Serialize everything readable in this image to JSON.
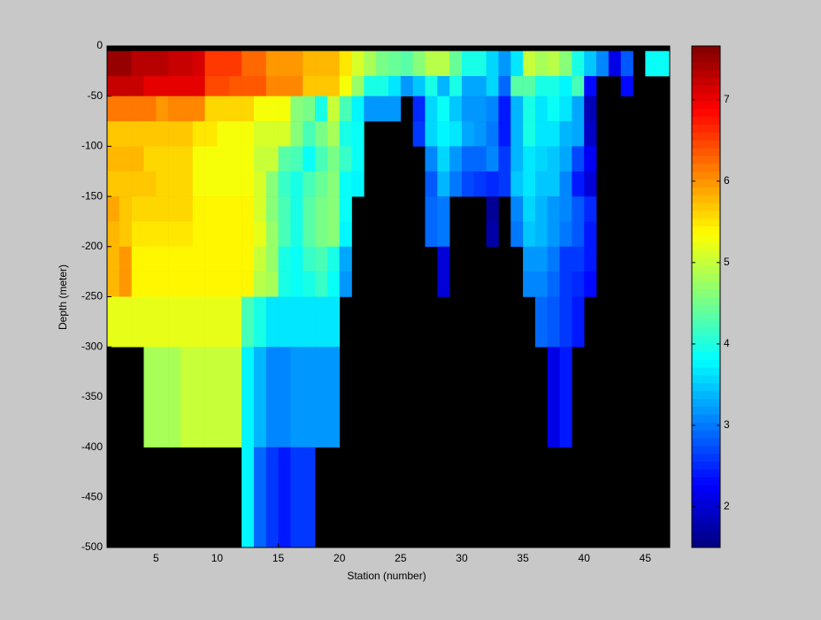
{
  "chart_data": {
    "type": "heatmap",
    "xlabel": "Station (number)",
    "ylabel": "Depth (meter)",
    "colormap": "jet",
    "x": [
      1,
      2,
      3,
      4,
      5,
      6,
      7,
      8,
      9,
      10,
      11,
      12,
      13,
      14,
      15,
      16,
      17,
      18,
      19,
      20,
      21,
      22,
      23,
      24,
      25,
      26,
      27,
      28,
      29,
      30,
      31,
      32,
      33,
      34,
      35,
      36,
      37,
      38,
      39,
      40,
      41,
      42,
      43,
      44,
      45,
      46,
      47
    ],
    "y": [
      -5,
      -30,
      -50,
      -75,
      -100,
      -125,
      -150,
      -175,
      -200,
      -225,
      -250,
      -300,
      -400,
      -500
    ],
    "z": [
      [
        7.5,
        7.5,
        7.3,
        7.3,
        7.3,
        7.2,
        7.2,
        7.1,
        6.6,
        6.6,
        6.6,
        6.3,
        6.3,
        6.0,
        6.0,
        6.0,
        5.8,
        5.8,
        5.8,
        5.5,
        5.1,
        4.8,
        4.5,
        4.4,
        4.3,
        4.6,
        4.9,
        4.9,
        4.4,
        4.0,
        4.0,
        3.6,
        3.2,
        3.7,
        5.0,
        4.8,
        4.9,
        4.6,
        4.0,
        3.5,
        3.1,
        2.1,
        2.8,
        null,
        3.9,
        3.9
      ],
      [
        7.2,
        7.2,
        7.2,
        7.0,
        7.0,
        7.0,
        7.0,
        7.0,
        6.5,
        6.5,
        6.4,
        6.4,
        6.4,
        6.1,
        6.1,
        6.1,
        5.7,
        5.7,
        5.7,
        5.3,
        4.7,
        4.0,
        4.0,
        3.7,
        3.2,
        3.5,
        4.0,
        3.4,
        4.0,
        3.3,
        3.3,
        3.6,
        2.9,
        4.3,
        4.3,
        4.0,
        4.0,
        3.8,
        4.2,
        2.3,
        null,
        null,
        2.3,
        null,
        null,
        null
      ],
      [
        6.2,
        6.2,
        6.2,
        6.2,
        6.0,
        6.1,
        6.1,
        6.1,
        5.6,
        5.6,
        5.6,
        5.6,
        5.3,
        5.3,
        5.3,
        4.6,
        4.5,
        4.0,
        5.0,
        4.2,
        3.8,
        3.2,
        3.2,
        3.2,
        null,
        2.5,
        3.6,
        3.9,
        3.5,
        3.2,
        3.2,
        3.1,
        2.4,
        3.4,
        4.0,
        3.7,
        3.9,
        3.7,
        3.3,
        1.8,
        null,
        null,
        null,
        null,
        null,
        null
      ],
      [
        5.7,
        5.7,
        5.7,
        5.7,
        5.7,
        5.7,
        5.7,
        5.5,
        5.5,
        5.3,
        5.3,
        5.3,
        5.1,
        5.1,
        5.1,
        4.6,
        4.2,
        4.5,
        4.8,
        4.0,
        3.9,
        null,
        null,
        null,
        null,
        2.6,
        3.6,
        3.8,
        3.7,
        3.3,
        3.2,
        3.0,
        2.4,
        3.4,
        4.0,
        3.7,
        3.7,
        3.4,
        3.3,
        1.9,
        null,
        null,
        null,
        null,
        null,
        null
      ],
      [
        5.8,
        5.8,
        5.8,
        5.6,
        5.6,
        5.6,
        5.6,
        5.3,
        5.3,
        5.3,
        5.3,
        5.3,
        5.0,
        5.0,
        4.3,
        4.2,
        3.9,
        4.2,
        4.5,
        4.1,
        3.9,
        null,
        null,
        null,
        null,
        null,
        3.1,
        3.6,
        3.2,
        2.9,
        2.9,
        3.1,
        2.6,
        3.4,
        3.7,
        3.6,
        3.5,
        3.3,
        2.7,
        2.2,
        null,
        null,
        null,
        null,
        null,
        null
      ],
      [
        5.7,
        5.7,
        5.7,
        5.7,
        5.6,
        5.6,
        5.6,
        5.3,
        5.3,
        5.3,
        5.3,
        5.3,
        5.1,
        4.6,
        4.1,
        4.0,
        4.2,
        4.4,
        4.6,
        3.9,
        3.8,
        null,
        null,
        null,
        null,
        null,
        2.8,
        3.4,
        3.0,
        2.7,
        2.6,
        2.5,
        2.6,
        3.5,
        3.7,
        3.5,
        3.5,
        3.1,
        2.4,
        2.0,
        null,
        null,
        null,
        null,
        null,
        null
      ],
      [
        5.9,
        5.7,
        5.6,
        5.6,
        5.6,
        5.6,
        5.6,
        5.4,
        5.4,
        5.4,
        5.4,
        5.4,
        5.1,
        4.6,
        4.2,
        4.0,
        4.3,
        4.5,
        4.6,
        3.9,
        null,
        null,
        null,
        null,
        null,
        null,
        2.9,
        3.0,
        null,
        null,
        null,
        1.6,
        null,
        3.1,
        3.6,
        3.4,
        3.2,
        3.1,
        2.8,
        2.5,
        null,
        null,
        null,
        null,
        null,
        null
      ],
      [
        5.8,
        5.7,
        5.5,
        5.5,
        5.5,
        5.5,
        5.5,
        5.4,
        5.4,
        5.4,
        5.4,
        5.4,
        5.2,
        4.7,
        4.2,
        4.0,
        4.3,
        4.5,
        4.6,
        3.8,
        null,
        null,
        null,
        null,
        null,
        null,
        2.9,
        3.0,
        null,
        null,
        null,
        1.7,
        null,
        3.0,
        3.5,
        3.4,
        3.2,
        3.0,
        2.8,
        2.4,
        null,
        null,
        null,
        null,
        null,
        null
      ],
      [
        5.8,
        6.0,
        5.4,
        5.4,
        5.4,
        5.4,
        5.4,
        5.4,
        5.4,
        5.4,
        5.4,
        5.4,
        5.0,
        4.7,
        4.0,
        3.9,
        4.1,
        4.2,
        4.0,
        3.3,
        null,
        null,
        null,
        null,
        null,
        null,
        null,
        2.0,
        null,
        null,
        null,
        null,
        null,
        null,
        3.2,
        3.2,
        3.0,
        2.6,
        2.6,
        2.4,
        null,
        null,
        null,
        null,
        null,
        null
      ],
      [
        5.8,
        6.0,
        5.4,
        5.4,
        5.4,
        5.4,
        5.4,
        5.4,
        5.4,
        5.4,
        5.4,
        5.4,
        4.9,
        4.8,
        4.0,
        3.9,
        4.0,
        4.1,
        3.9,
        3.2,
        null,
        null,
        null,
        null,
        null,
        null,
        null,
        2.0,
        null,
        null,
        null,
        null,
        null,
        null,
        3.1,
        3.1,
        2.9,
        2.6,
        2.5,
        2.3,
        null,
        null,
        null,
        null,
        null,
        null
      ],
      [
        5.2,
        5.2,
        5.2,
        5.2,
        5.2,
        5.2,
        5.2,
        5.2,
        5.2,
        5.2,
        5.2,
        4.2,
        4.0,
        3.7,
        3.7,
        3.7,
        3.7,
        3.7,
        3.7,
        null,
        null,
        null,
        null,
        null,
        null,
        null,
        null,
        null,
        null,
        null,
        null,
        null,
        null,
        null,
        null,
        2.9,
        2.8,
        2.6,
        2.4,
        null,
        null,
        null,
        null,
        null,
        null,
        null
      ],
      [
        null,
        null,
        null,
        4.8,
        4.8,
        4.8,
        5.0,
        5.0,
        5.0,
        5.0,
        5.0,
        3.8,
        3.4,
        3.1,
        3.1,
        3.2,
        3.2,
        3.2,
        3.2,
        null,
        null,
        null,
        null,
        null,
        null,
        null,
        null,
        null,
        null,
        null,
        null,
        null,
        null,
        null,
        null,
        null,
        2.1,
        2.4,
        null,
        null,
        null,
        null,
        null,
        null,
        null,
        null
      ],
      [
        null,
        null,
        null,
        null,
        null,
        null,
        null,
        null,
        null,
        null,
        null,
        3.8,
        2.9,
        2.6,
        2.4,
        2.6,
        2.6,
        null,
        null,
        null,
        null,
        null,
        null,
        null,
        null,
        null,
        null,
        null,
        null,
        null,
        null,
        null,
        null,
        null,
        null,
        null,
        null,
        null,
        null,
        null,
        null,
        null,
        null,
        null,
        null,
        null
      ]
    ],
    "xlim": [
      1,
      47
    ],
    "ylim": [
      -500,
      0
    ],
    "xticks": [
      5,
      10,
      15,
      20,
      25,
      30,
      35,
      40,
      45
    ],
    "yticks": [
      0,
      -50,
      -100,
      -150,
      -200,
      -250,
      -300,
      -350,
      -400,
      -450,
      -500
    ],
    "clim": [
      1.5,
      7.66
    ],
    "cticks": [
      2,
      3,
      4,
      5,
      6,
      7
    ]
  }
}
